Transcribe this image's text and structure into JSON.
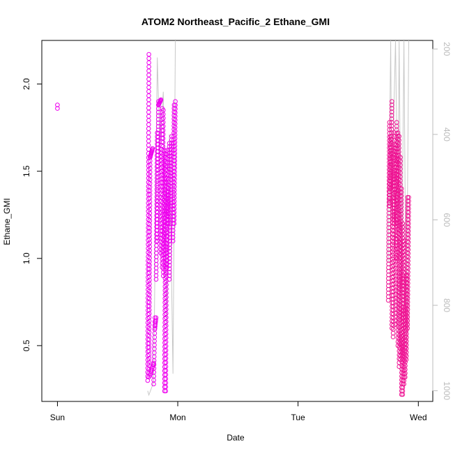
{
  "chart_data": {
    "type": "scatter",
    "title": "ATOM2 Northeast_Pacific_2 Ethane_GMI",
    "xlabel": "Date",
    "ylabel": "Ethane_GMI",
    "x_ticks": [
      "Sun",
      "Mon",
      "Tue",
      "Wed"
    ],
    "x_tick_values": [
      0,
      1,
      2,
      3
    ],
    "xlim": [
      -0.13,
      3.12
    ],
    "y_ticks": [
      "0.5",
      "1.0",
      "1.5",
      "2.0"
    ],
    "y_tick_values": [
      0.5,
      1.0,
      1.5,
      2.0
    ],
    "ylim": [
      0.18,
      2.25
    ],
    "y2_ticks": [
      "200",
      "400",
      "600",
      "800",
      "1000"
    ],
    "y2_tick_values": [
      200,
      400,
      600,
      800,
      1000
    ],
    "y2lim": [
      1025,
      180
    ],
    "grid": false,
    "colors": {
      "magenta": "#ee00ee",
      "pink": "#ee1493",
      "pressure_line": "#c8c8c8",
      "axis": "#000000",
      "axis2": "#bbbbbb"
    },
    "series": [
      {
        "color": "magenta",
        "segments": [
          {
            "x": [
              0.0,
              0.0
            ],
            "y": [
              1.86,
              1.88
            ],
            "n": 2
          },
          {
            "x": [
              0.75,
              0.76
            ],
            "y": [
              0.3,
              2.17
            ],
            "n": 80
          },
          {
            "x": [
              0.76,
              0.77
            ],
            "y": [
              0.32,
              1.58
            ],
            "n": 60
          },
          {
            "x": [
              0.77,
              0.8
            ],
            "y": [
              0.33,
              0.4
            ],
            "n": 8
          },
          {
            "x": [
              0.77,
              0.79
            ],
            "y": [
              1.58,
              1.63
            ],
            "n": 10
          },
          {
            "x": [
              0.8,
              0.81
            ],
            "y": [
              0.28,
              0.66
            ],
            "n": 18
          },
          {
            "x": [
              0.81,
              0.82
            ],
            "y": [
              0.6,
              0.66
            ],
            "n": 6
          },
          {
            "x": [
              0.82,
              0.83
            ],
            "y": [
              0.88,
              1.72
            ],
            "n": 40
          },
          {
            "x": [
              0.83,
              0.84
            ],
            "y": [
              1.1,
              1.9
            ],
            "n": 40
          },
          {
            "x": [
              0.84,
              0.86
            ],
            "y": [
              1.88,
              1.91
            ],
            "n": 8
          },
          {
            "x": [
              0.86,
              0.87
            ],
            "y": [
              1.03,
              1.86
            ],
            "n": 40
          },
          {
            "x": [
              0.87,
              0.88
            ],
            "y": [
              0.95,
              1.85
            ],
            "n": 40
          },
          {
            "x": [
              0.88,
              0.89
            ],
            "y": [
              0.9,
              1.62
            ],
            "n": 36
          },
          {
            "x": [
              0.89,
              0.9
            ],
            "y": [
              0.24,
              1.6
            ],
            "n": 60
          },
          {
            "x": [
              0.9,
              0.91
            ],
            "y": [
              0.24,
              1.62
            ],
            "n": 60
          },
          {
            "x": [
              0.91,
              0.92
            ],
            "y": [
              0.95,
              1.4
            ],
            "n": 24
          },
          {
            "x": [
              0.92,
              0.93
            ],
            "y": [
              1.2,
              1.66
            ],
            "n": 26
          },
          {
            "x": [
              0.93,
              0.94
            ],
            "y": [
              0.88,
              1.3
            ],
            "n": 22
          },
          {
            "x": [
              0.94,
              0.95
            ],
            "y": [
              1.3,
              1.7
            ],
            "n": 22
          },
          {
            "x": [
              0.96,
              0.97
            ],
            "y": [
              1.1,
              1.88
            ],
            "n": 40
          },
          {
            "x": [
              0.97,
              0.98
            ],
            "y": [
              1.2,
              1.9
            ],
            "n": 34
          }
        ]
      },
      {
        "color": "pink",
        "segments": [
          {
            "x": [
              2.75,
              2.76
            ],
            "y": [
              0.76,
              1.78
            ],
            "n": 50
          },
          {
            "x": [
              2.76,
              2.77
            ],
            "y": [
              1.3,
              1.7
            ],
            "n": 26
          },
          {
            "x": [
              2.77,
              2.78
            ],
            "y": [
              1.4,
              1.9
            ],
            "n": 26
          },
          {
            "x": [
              2.78,
              2.79
            ],
            "y": [
              0.6,
              1.62
            ],
            "n": 50
          },
          {
            "x": [
              2.79,
              2.8
            ],
            "y": [
              0.55,
              1.72
            ],
            "n": 55
          },
          {
            "x": [
              2.8,
              2.81
            ],
            "y": [
              1.2,
              1.65
            ],
            "n": 26
          },
          {
            "x": [
              2.81,
              2.82
            ],
            "y": [
              0.62,
              1.78
            ],
            "n": 55
          },
          {
            "x": [
              2.82,
              2.83
            ],
            "y": [
              1.0,
              1.72
            ],
            "n": 40
          },
          {
            "x": [
              2.83,
              2.84
            ],
            "y": [
              0.5,
              1.7
            ],
            "n": 55
          },
          {
            "x": [
              2.84,
              2.85
            ],
            "y": [
              0.38,
              1.58
            ],
            "n": 55
          },
          {
            "x": [
              2.85,
              2.86
            ],
            "y": [
              0.42,
              1.4
            ],
            "n": 48
          },
          {
            "x": [
              2.86,
              2.87
            ],
            "y": [
              0.22,
              1.2
            ],
            "n": 48
          },
          {
            "x": [
              2.87,
              2.88
            ],
            "y": [
              0.22,
              1.1
            ],
            "n": 45
          },
          {
            "x": [
              2.88,
              2.89
            ],
            "y": [
              0.28,
              0.72
            ],
            "n": 24
          },
          {
            "x": [
              2.89,
              2.9
            ],
            "y": [
              0.32,
              0.9
            ],
            "n": 28
          },
          {
            "x": [
              2.9,
              2.91
            ],
            "y": [
              0.42,
              1.35
            ],
            "n": 45
          },
          {
            "x": [
              2.91,
              2.92
            ],
            "y": [
              0.6,
              1.35
            ],
            "n": 36
          }
        ]
      }
    ],
    "pressure_lines": [
      {
        "x": [
          0.75,
          0.76,
          0.8,
          0.83,
          0.85,
          0.88,
          0.91,
          0.93,
          0.96,
          0.98
        ],
        "y": [
          1000,
          1010,
          980,
          220,
          430,
          300,
          850,
          400,
          960,
          180
        ]
      },
      {
        "x": [
          2.75,
          2.77,
          2.78,
          2.8,
          2.81,
          2.83,
          2.84,
          2.86,
          2.88,
          2.9,
          2.92
        ],
        "y": [
          700,
          180,
          600,
          300,
          180,
          620,
          180,
          800,
          180,
          900,
          180
        ]
      }
    ]
  }
}
